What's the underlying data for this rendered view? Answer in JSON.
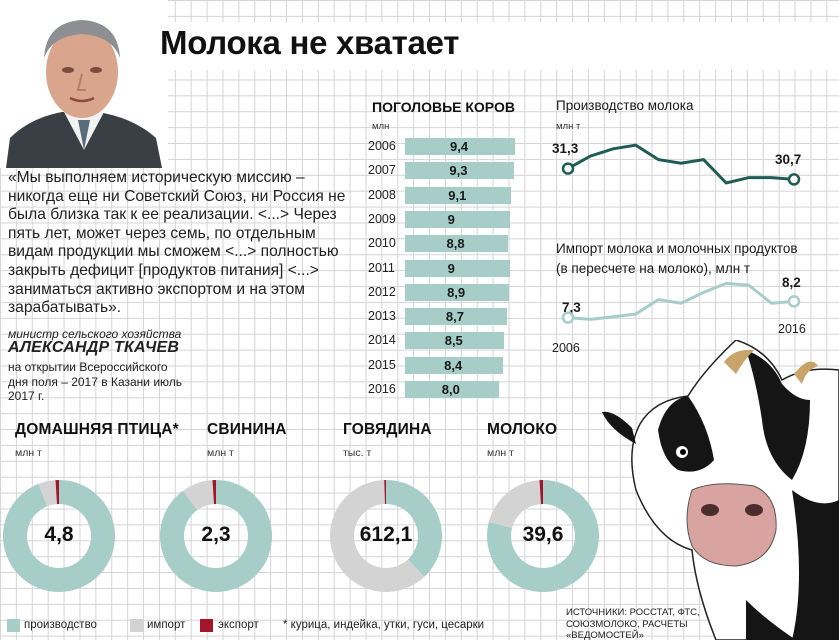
{
  "title": "Молока не хватает",
  "quote": {
    "text": "«Мы выполняем историческую миссию – никогда еще ни Советский Союз, ни Россия не была близка так к ее реализации. <...> Через пять лет, может через семь, по отдельным видам продукции мы сможем <...> полностью закрыть дефицит  [продуктов питания] <...> заниматься активно экспортом и на этом зарабатывать».",
    "role": "министр сельского хозяйства",
    "person": "АЛЕКСАНДР ТКАЧЕВ",
    "context": "на открытии Всероссийского дня поля – 2017 в Казани июль 2017 г."
  },
  "cows": {
    "title": "ПОГОЛОВЬЕ КОРОВ",
    "unit": "млн"
  },
  "milk_production": {
    "title": "Производство молока",
    "unit": "млн т",
    "first_label": "31,3",
    "last_label": "30,7"
  },
  "milk_import": {
    "title_line1": "Импорт молока и молочных продуктов",
    "title_line2": "(в пересчете на молоко), млн т",
    "first_label": "7,3",
    "last_label": "8,2",
    "first_year": "2006",
    "last_year": "2016"
  },
  "donuts": [
    {
      "title": "ДОМАШНЯЯ ПТИЦА*",
      "unit": "млн т",
      "value": "4,8"
    },
    {
      "title": "СВИНИНА",
      "unit": "млн т",
      "value": "2,3"
    },
    {
      "title": "ГОВЯДИНА",
      "unit": "тыс. т",
      "value": "612,1"
    },
    {
      "title": "МОЛОКО",
      "unit": "млн т",
      "value": "39,6"
    }
  ],
  "legend": {
    "production": "производство",
    "import": "импорт",
    "export": "экспорт",
    "footnote": "* курица, индейка, утки, гуси, цесарки"
  },
  "sources": "ИСТОЧНИКИ: РОССТАТ, ФТС, СОЮЗМОЛОКО, РАСЧЕТЫ «ВЕДОМОСТЕЙ»",
  "colors": {
    "production": "#a6cdc7",
    "import": "#d3d3d3",
    "export": "#a3162a",
    "milk_line": "#1f5c55",
    "import_line": "#a6cdc7"
  },
  "chart_data": [
    {
      "type": "bar",
      "title": "ПОГОЛОВЬЕ КОРОВ",
      "ylabel": "млн",
      "categories": [
        "2006",
        "2007",
        "2008",
        "2009",
        "2010",
        "2011",
        "2012",
        "2013",
        "2014",
        "2015",
        "2016"
      ],
      "values": [
        9.4,
        9.3,
        9.1,
        9.0,
        8.8,
        9.0,
        8.9,
        8.7,
        8.5,
        8.4,
        8.0
      ],
      "value_labels": [
        "9,4",
        "9,3",
        "9,1",
        "9",
        "8,8",
        "9",
        "8,9",
        "8,7",
        "8,5",
        "8,4",
        "8,0"
      ]
    },
    {
      "type": "line",
      "title": "Производство молока",
      "ylabel": "млн т",
      "x": [
        "2006",
        "2007",
        "2008",
        "2009",
        "2010",
        "2011",
        "2012",
        "2013",
        "2014",
        "2015",
        "2016"
      ],
      "values": [
        31.3,
        32.0,
        32.4,
        32.6,
        31.8,
        31.6,
        31.8,
        30.5,
        30.8,
        30.8,
        30.7
      ],
      "ylim": [
        30,
        33
      ]
    },
    {
      "type": "line",
      "title": "Импорт молока и молочных продуктов (в пересчете на молоко), млн т",
      "ylabel": "млн т",
      "x": [
        "2006",
        "2007",
        "2008",
        "2009",
        "2010",
        "2011",
        "2012",
        "2013",
        "2014",
        "2015",
        "2016"
      ],
      "values": [
        7.3,
        7.2,
        7.35,
        7.5,
        8.3,
        8.1,
        8.7,
        9.2,
        9.1,
        8.1,
        8.2
      ],
      "ylim": [
        6.5,
        9.5
      ]
    },
    {
      "type": "pie",
      "title": "ДОМАШНЯЯ ПТИЦА*",
      "total_label": "4,8",
      "unit": "млн т",
      "categories": [
        "производство",
        "импорт",
        "экспорт"
      ],
      "values": [
        0.94,
        0.05,
        0.01
      ]
    },
    {
      "type": "pie",
      "title": "СВИНИНА",
      "total_label": "2,3",
      "unit": "млн т",
      "categories": [
        "производство",
        "импорт",
        "экспорт"
      ],
      "values": [
        0.9,
        0.09,
        0.01
      ]
    },
    {
      "type": "pie",
      "title": "ГОВЯДИНА",
      "total_label": "612,1",
      "unit": "тыс. т",
      "categories": [
        "производство",
        "импорт",
        "экспорт"
      ],
      "values": [
        0.38,
        0.615,
        0.005
      ]
    },
    {
      "type": "pie",
      "title": "МОЛОКО",
      "total_label": "39,6",
      "unit": "млн т",
      "categories": [
        "производство",
        "импорт",
        "экспорт"
      ],
      "values": [
        0.79,
        0.2,
        0.01
      ]
    }
  ]
}
